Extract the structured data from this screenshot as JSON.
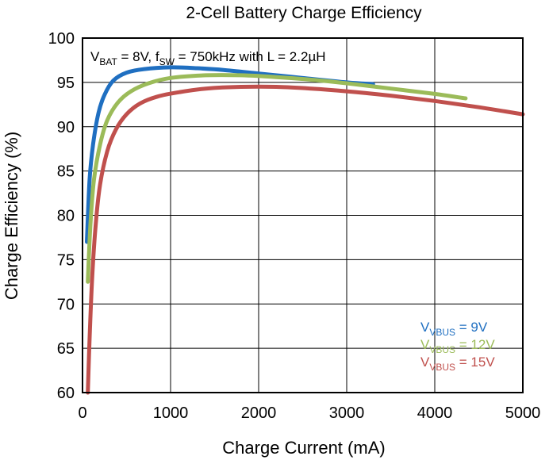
{
  "chart_data": {
    "type": "line",
    "title": "2-Cell Battery Charge Efficiency",
    "xlabel": "Charge Current (mA)",
    "ylabel": "Charge Efficiency (%)",
    "xlim": [
      0,
      5000
    ],
    "ylim": [
      60,
      100
    ],
    "xticks": [
      0,
      1000,
      2000,
      3000,
      4000,
      5000
    ],
    "yticks": [
      60,
      65,
      70,
      75,
      80,
      85,
      90,
      95,
      100
    ],
    "grid": true,
    "legend_position": "bottom-right",
    "annotation": {
      "v": "V",
      "v_sub": "BAT",
      "mid": " = 8V, f",
      "f_sub": "SW",
      "rest": " = 750kHz with L = 2.2µH"
    },
    "series": [
      {
        "name": "VVBUS = 9V",
        "legend_main": "V",
        "legend_sub": "VBUS",
        "legend_value": " = 9V",
        "color": "#1f6fc1",
        "x": [
          50,
          80,
          120,
          180,
          250,
          350,
          500,
          700,
          1000,
          1300,
          1600,
          2000,
          2500,
          3000,
          3300
        ],
        "y": [
          77,
          84,
          88,
          91.5,
          93.6,
          95.2,
          96.1,
          96.5,
          96.7,
          96.6,
          96.4,
          96.0,
          95.5,
          95.0,
          94.8
        ]
      },
      {
        "name": "VVBUS = 12V",
        "legend_main": "V",
        "legend_sub": "VBUS",
        "legend_value": " = 12V",
        "color": "#9bbb59",
        "x": [
          60,
          90,
          130,
          200,
          280,
          400,
          550,
          750,
          1000,
          1400,
          1800,
          2200,
          2600,
          3000,
          3500,
          4000,
          4350
        ],
        "y": [
          72.5,
          79,
          84,
          88,
          90.7,
          92.7,
          94.0,
          94.9,
          95.5,
          95.8,
          95.8,
          95.6,
          95.3,
          94.9,
          94.3,
          93.7,
          93.2
        ]
      },
      {
        "name": "VVBUS = 15V",
        "legend_main": "V",
        "legend_sub": "VBUS",
        "legend_value": " = 15V",
        "color": "#c0504d",
        "x": [
          60,
          80,
          110,
          150,
          200,
          280,
          380,
          500,
          650,
          850,
          1100,
          1400,
          1800,
          2200,
          2600,
          3000,
          3500,
          4000,
          4500,
          5000
        ],
        "y": [
          60,
          66,
          73,
          79,
          83.5,
          87.2,
          89.7,
          91.4,
          92.6,
          93.4,
          93.9,
          94.3,
          94.5,
          94.5,
          94.3,
          94.0,
          93.5,
          92.9,
          92.2,
          91.4
        ]
      }
    ]
  }
}
